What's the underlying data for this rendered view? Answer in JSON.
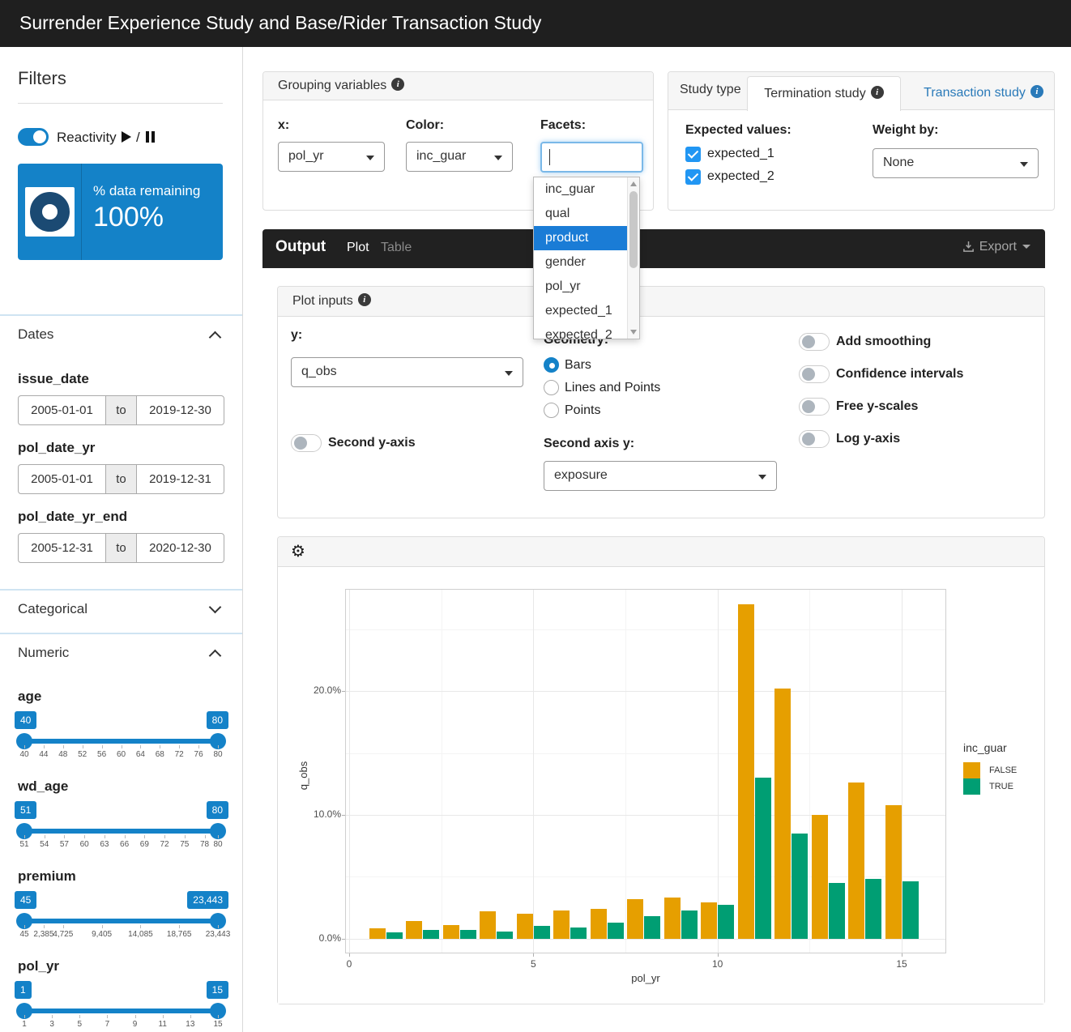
{
  "header": {
    "title": "Surrender Experience Study and Base/Rider Transaction Study"
  },
  "sidebar": {
    "filters_title": "Filters",
    "reactivity_label": "Reactivity",
    "reactivity_divider": "/",
    "valuebox": {
      "label": "% data remaining",
      "value": "100%"
    },
    "dates_label": "Dates",
    "date_fields": [
      {
        "name": "issue_date",
        "from": "2005-01-01",
        "sep": "to",
        "to": "2019-12-30"
      },
      {
        "name": "pol_date_yr",
        "from": "2005-01-01",
        "sep": "to",
        "to": "2019-12-31"
      },
      {
        "name": "pol_date_yr_end",
        "from": "2005-12-31",
        "sep": "to",
        "to": "2020-12-30"
      }
    ],
    "categorical_label": "Categorical",
    "numeric_label": "Numeric",
    "sliders": [
      {
        "name": "age",
        "low": "40",
        "high": "80",
        "ticks": [
          "40",
          "44",
          "48",
          "52",
          "56",
          "60",
          "64",
          "68",
          "72",
          "76",
          "80"
        ]
      },
      {
        "name": "wd_age",
        "low": "51",
        "high": "80",
        "ticks": [
          "51",
          "54",
          "57",
          "60",
          "63",
          "66",
          "69",
          "72",
          "75",
          "78",
          "80"
        ]
      },
      {
        "name": "premium",
        "low": "45",
        "high": "23,443",
        "ticks": [
          "45",
          "2,385",
          "4,725",
          "9,405",
          "14,085",
          "18,765",
          "23,443"
        ]
      },
      {
        "name": "pol_yr",
        "low": "1",
        "high": "15",
        "ticks": [
          "1",
          "3",
          "5",
          "7",
          "9",
          "11",
          "13",
          "15"
        ]
      }
    ]
  },
  "grouping": {
    "title": "Grouping variables",
    "x_label": "x:",
    "x_value": "pol_yr",
    "color_label": "Color:",
    "color_value": "inc_guar",
    "facets_label": "Facets:",
    "facets_value": "",
    "facet_options": [
      "inc_guar",
      "qual",
      "product",
      "gender",
      "pol_yr",
      "expected_1",
      "expected_2"
    ],
    "facet_highlighted": "product"
  },
  "study_type": {
    "header_label": "Study type",
    "tabs": [
      {
        "label": "Termination study",
        "active": true
      },
      {
        "label": "Transaction study",
        "active": false
      }
    ],
    "expected_values_label": "Expected values:",
    "expected_options": [
      {
        "label": "expected_1",
        "checked": true
      },
      {
        "label": "expected_2",
        "checked": true
      }
    ],
    "weight_by_label": "Weight by:",
    "weight_by_value": "None"
  },
  "output_bar": {
    "title": "Output",
    "tabs": [
      {
        "label": "Plot",
        "active": true
      },
      {
        "label": "Table",
        "active": false
      }
    ],
    "export_label": "Export"
  },
  "plot_inputs": {
    "title": "Plot inputs",
    "y_label": "y:",
    "y_value": "q_obs",
    "geometry_label": "Geometry:",
    "geometry_options": [
      {
        "label": "Bars",
        "selected": true
      },
      {
        "label": "Lines and Points",
        "selected": false
      },
      {
        "label": "Points",
        "selected": false
      }
    ],
    "second_y_axis_label": "Second y-axis",
    "second_y_axis_on": false,
    "second_axis_y_label": "Second axis y:",
    "second_axis_y_value": "exposure",
    "toggle_options": [
      {
        "label": "Add smoothing",
        "on": false
      },
      {
        "label": "Confidence intervals",
        "on": false
      },
      {
        "label": "Free y-scales",
        "on": false
      },
      {
        "label": "Log y-axis",
        "on": false
      }
    ]
  },
  "chart_data": {
    "type": "bar",
    "title": "",
    "xlabel": "pol_yr",
    "ylabel": "q_obs",
    "legend_title": "inc_guar",
    "legend_position": "right",
    "units": "percent",
    "categories": [
      1,
      2,
      3,
      4,
      5,
      6,
      7,
      8,
      9,
      10,
      11,
      12,
      13,
      14,
      15
    ],
    "series": [
      {
        "name": "FALSE",
        "color": "#E69F00",
        "values": [
          0.8,
          1.4,
          1.1,
          2.2,
          2.0,
          2.3,
          2.4,
          3.2,
          3.3,
          2.9,
          27.0,
          20.2,
          10.0,
          12.6,
          10.8
        ]
      },
      {
        "name": "TRUE",
        "color": "#009E73",
        "values": [
          0.5,
          0.7,
          0.7,
          0.6,
          1.0,
          0.9,
          1.3,
          1.8,
          2.3,
          2.7,
          13.0,
          8.5,
          4.5,
          4.8,
          4.6
        ]
      }
    ],
    "y_tick_labels": [
      "0.0%",
      "10.0%",
      "20.0%"
    ],
    "y_tick_values": [
      0,
      10,
      20
    ],
    "x_tick_values": [
      0,
      5,
      10,
      15
    ],
    "ylim": [
      -1.3,
      28.3
    ],
    "xlim": [
      -0.11,
      16.21
    ],
    "grid": true
  },
  "colors": {
    "accent_blue": "#1482c8",
    "donut_navy": "#1b4a73",
    "link_blue": "#2a7ab9",
    "checkbox_blue": "#2196f3",
    "dropdown_highlight": "#1a7cd6",
    "header_bg": "#1f1f1f",
    "bar_false_orange": "#E69F00",
    "bar_true_green": "#009E73"
  }
}
